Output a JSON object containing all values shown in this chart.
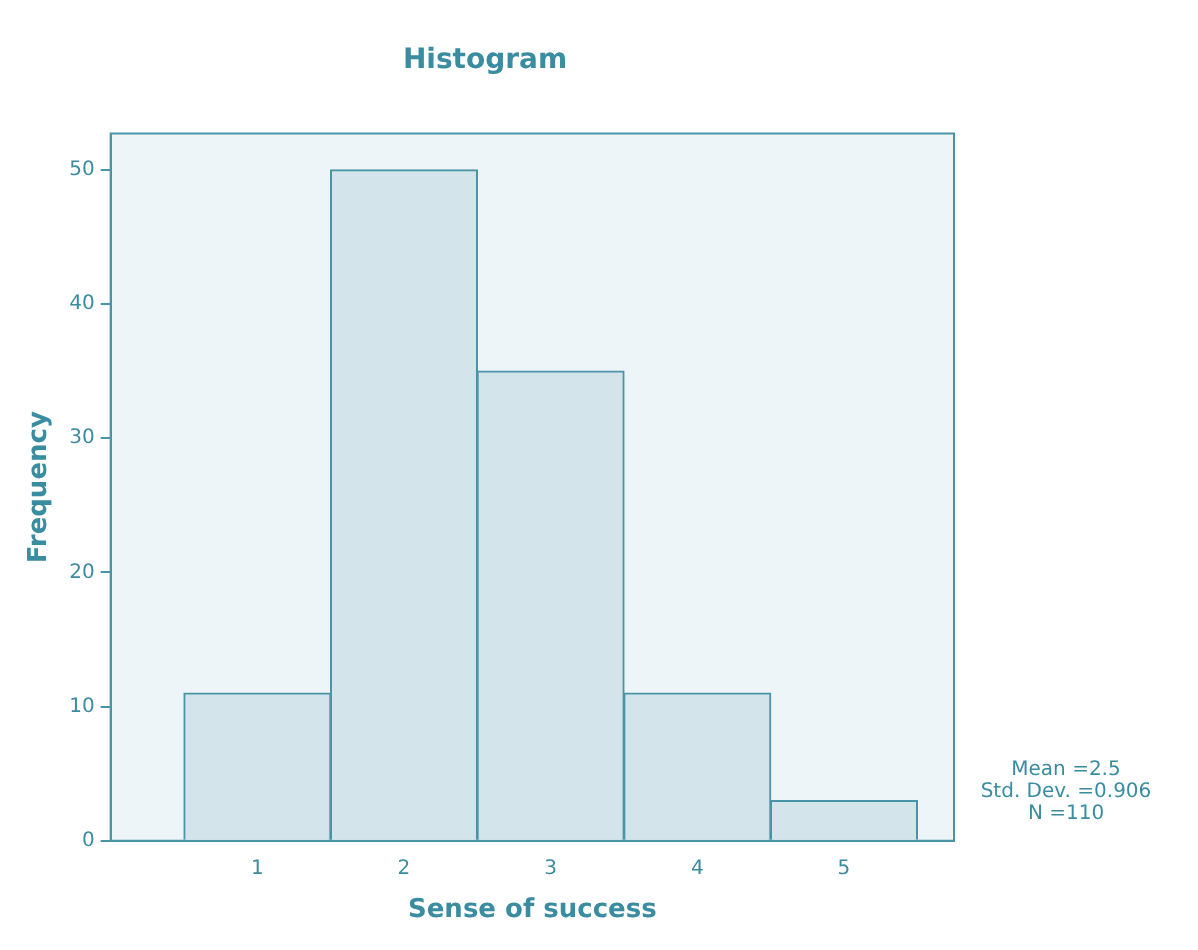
{
  "chart_data": {
    "type": "histogram",
    "title": "Histogram",
    "xlabel": "Sense of success",
    "ylabel": "Frequency",
    "bins": [
      0.5,
      1.5,
      2.5,
      3.5,
      4.5,
      5.5
    ],
    "values": [
      11,
      50,
      35,
      11,
      3
    ],
    "color": "#d3e4ea",
    "xlim": [
      0,
      5.75
    ],
    "xticks": [
      1,
      2,
      3,
      4,
      5
    ],
    "ylim": [
      0,
      52.7
    ],
    "yticks": [
      0,
      10,
      20,
      30,
      40,
      50
    ],
    "grid": false,
    "annotations": [
      "Mean =2.5",
      "Std. Dev. =0.906",
      "N =110"
    ]
  }
}
